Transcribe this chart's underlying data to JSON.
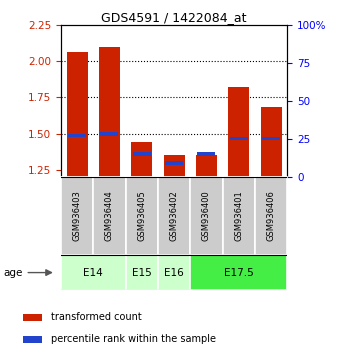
{
  "title": "GDS4591 / 1422084_at",
  "samples": [
    "GSM936403",
    "GSM936404",
    "GSM936405",
    "GSM936402",
    "GSM936400",
    "GSM936401",
    "GSM936406"
  ],
  "transformed_count": [
    2.06,
    2.1,
    1.44,
    1.35,
    1.35,
    1.82,
    1.68
  ],
  "percentile_rank": [
    26,
    27,
    14,
    8,
    14,
    24,
    24
  ],
  "age_groups": [
    {
      "label": "E14",
      "samples": [
        0,
        1
      ],
      "color": "#ccffcc"
    },
    {
      "label": "E15",
      "samples": [
        2
      ],
      "color": "#ccffcc"
    },
    {
      "label": "E16",
      "samples": [
        3
      ],
      "color": "#ccffcc"
    },
    {
      "label": "E17.5",
      "samples": [
        4,
        5,
        6
      ],
      "color": "#44ee44"
    }
  ],
  "ylim_left": [
    1.2,
    2.25
  ],
  "ylim_right": [
    0,
    100
  ],
  "yticks_left": [
    1.25,
    1.5,
    1.75,
    2.0,
    2.25
  ],
  "yticks_right": [
    0,
    25,
    50,
    75,
    100
  ],
  "bar_color_red": "#cc2200",
  "bar_color_blue": "#2244cc",
  "bar_width": 0.65,
  "bg_color_sample": "#cccccc",
  "age_label": "age",
  "legend_red": "transformed count",
  "legend_blue": "percentile rank within the sample",
  "grid_yticks": [
    1.5,
    1.75,
    2.0
  ],
  "baseline": 1.2
}
